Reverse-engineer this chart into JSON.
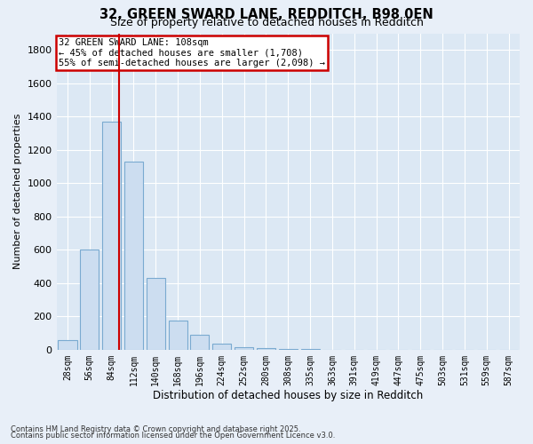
{
  "title1": "32, GREEN SWARD LANE, REDDITCH, B98 0EN",
  "title2": "Size of property relative to detached houses in Redditch",
  "xlabel": "Distribution of detached houses by size in Redditch",
  "ylabel": "Number of detached properties",
  "categories": [
    "28sqm",
    "56sqm",
    "84sqm",
    "112sqm",
    "140sqm",
    "168sqm",
    "196sqm",
    "224sqm",
    "252sqm",
    "280sqm",
    "308sqm",
    "335sqm",
    "363sqm",
    "391sqm",
    "419sqm",
    "447sqm",
    "475sqm",
    "503sqm",
    "531sqm",
    "559sqm",
    "587sqm"
  ],
  "bar_values": [
    60,
    600,
    1370,
    1130,
    430,
    175,
    90,
    35,
    15,
    8,
    3,
    2,
    1,
    0,
    0,
    0,
    0,
    0,
    0,
    0,
    0
  ],
  "bar_color": "#ccddf0",
  "bar_edge_color": "#7aaad0",
  "vline_color": "#cc0000",
  "ylim": [
    0,
    1900
  ],
  "yticks": [
    0,
    200,
    400,
    600,
    800,
    1000,
    1200,
    1400,
    1600,
    1800
  ],
  "annotation_title": "32 GREEN SWARD LANE: 108sqm",
  "annotation_line1": "← 45% of detached houses are smaller (1,708)",
  "annotation_line2": "55% of semi-detached houses are larger (2,098) →",
  "annotation_box_color": "#cc0000",
  "footer1": "Contains HM Land Registry data © Crown copyright and database right 2025.",
  "footer2": "Contains public sector information licensed under the Open Government Licence v3.0.",
  "background_color": "#e8eff8",
  "plot_bg_color": "#dce8f4"
}
